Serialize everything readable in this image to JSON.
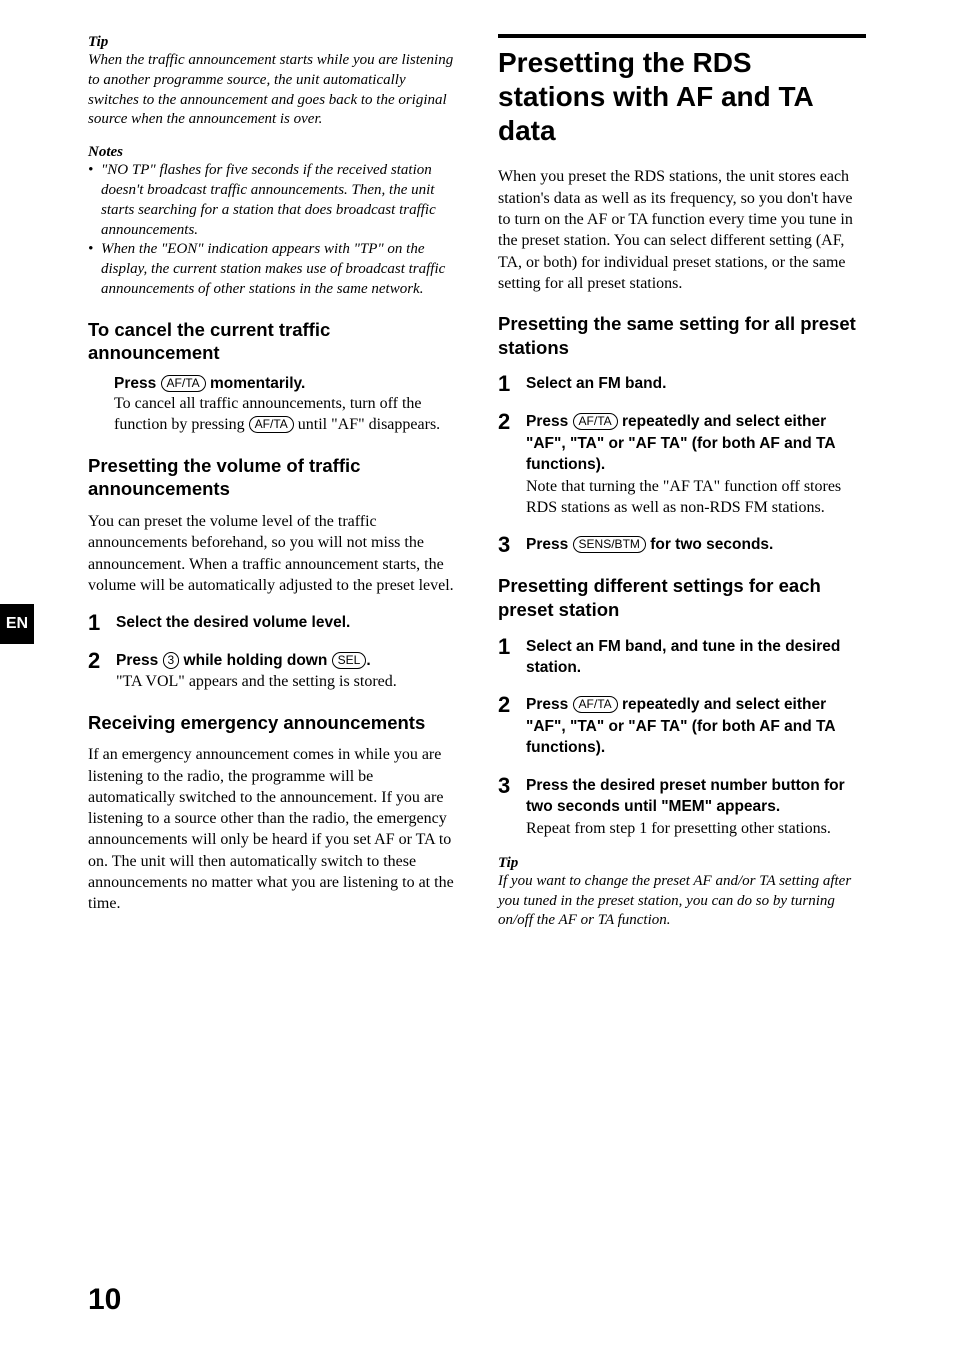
{
  "sideTab": "EN",
  "pageNum": "10",
  "left": {
    "tip": {
      "label": "Tip",
      "body": "When the traffic announcement starts while you are listening to another programme source, the unit automatically switches to the announcement and goes back to the original source when the announcement is over."
    },
    "notes": {
      "label": "Notes",
      "items": [
        "\"NO TP\" flashes for five seconds if the received station doesn't broadcast traffic announcements. Then, the unit starts searching for a station that does broadcast traffic announcements.",
        "When the \"EON\" indication appears with \"TP\" on the display, the current station makes use of broadcast traffic announcements of other stations in the same network."
      ]
    },
    "sec1": {
      "title": "To cancel the current traffic announcement",
      "pressPre": "Press ",
      "pressBtn": "AF/TA",
      "pressPost": " momentarily.",
      "body1": "To cancel all traffic announcements, turn off the function by pressing  ",
      "btn2": "AF/TA",
      "body2": " until \"AF\" disappears."
    },
    "sec2": {
      "title": "Presetting the volume of traffic announcements",
      "intro": "You can preset the volume level of the traffic announcements beforehand, so you will not miss the announcement.  When a traffic announcement starts, the volume will be automatically adjusted to the preset level.",
      "step1": {
        "num": "1",
        "bold": "Select the desired volume level."
      },
      "step2": {
        "num": "2",
        "boldPre": "Press ",
        "btn1": "3",
        "boldMid": " while holding down ",
        "btn2": "SEL",
        "boldPost": ".",
        "body": "\"TA VOL\" appears and the setting is stored."
      }
    },
    "sec3": {
      "title": "Receiving emergency announcements",
      "body": "If an emergency announcement comes in while you are listening to the radio, the programme will be automatically switched to the announcement. If you are listening to a source other than the radio, the emergency announcements will only be heard if you set AF or TA to on. The unit will then automatically switch to these announcements no matter what you are listening to at the time."
    }
  },
  "right": {
    "h1": "Presetting the RDS stations with AF and TA data",
    "intro": "When you preset the RDS stations, the unit stores each station's data as well as its frequency, so you don't have to turn on the AF or TA function every time you tune in the preset station. You can select different setting (AF, TA, or both) for individual preset stations, or the same setting for all preset stations.",
    "secA": {
      "title": "Presetting the same setting for all preset stations",
      "step1": {
        "num": "1",
        "bold": "Select an FM band."
      },
      "step2": {
        "num": "2",
        "boldPre": "Press ",
        "btn": "AF/TA",
        "boldPost": " repeatedly and select either \"AF\", \"TA\" or \"AF TA\" (for both AF and TA functions).",
        "body": "Note that turning the \"AF TA\" function off stores RDS stations as well as non-RDS FM stations."
      },
      "step3": {
        "num": "3",
        "boldPre": "Press ",
        "btn": "SENS/BTM",
        "boldPost": " for two seconds."
      }
    },
    "secB": {
      "title": "Presetting different settings for each preset station",
      "step1": {
        "num": "1",
        "bold": "Select an FM band, and tune in the desired station."
      },
      "step2": {
        "num": "2",
        "boldPre": "Press ",
        "btn": "AF/TA",
        "boldPost": " repeatedly and select either \"AF\", \"TA\" or \"AF TA\" (for both AF and TA functions)."
      },
      "step3": {
        "num": "3",
        "bold": "Press the desired preset number button for two seconds until \"MEM\" appears.",
        "body": "Repeat from step 1 for presetting other stations."
      }
    },
    "tip": {
      "label": "Tip",
      "body": "If you want to change the preset AF and/or TA setting after you tuned in the preset station,  you can do so by turning on/off the AF or TA function."
    }
  }
}
